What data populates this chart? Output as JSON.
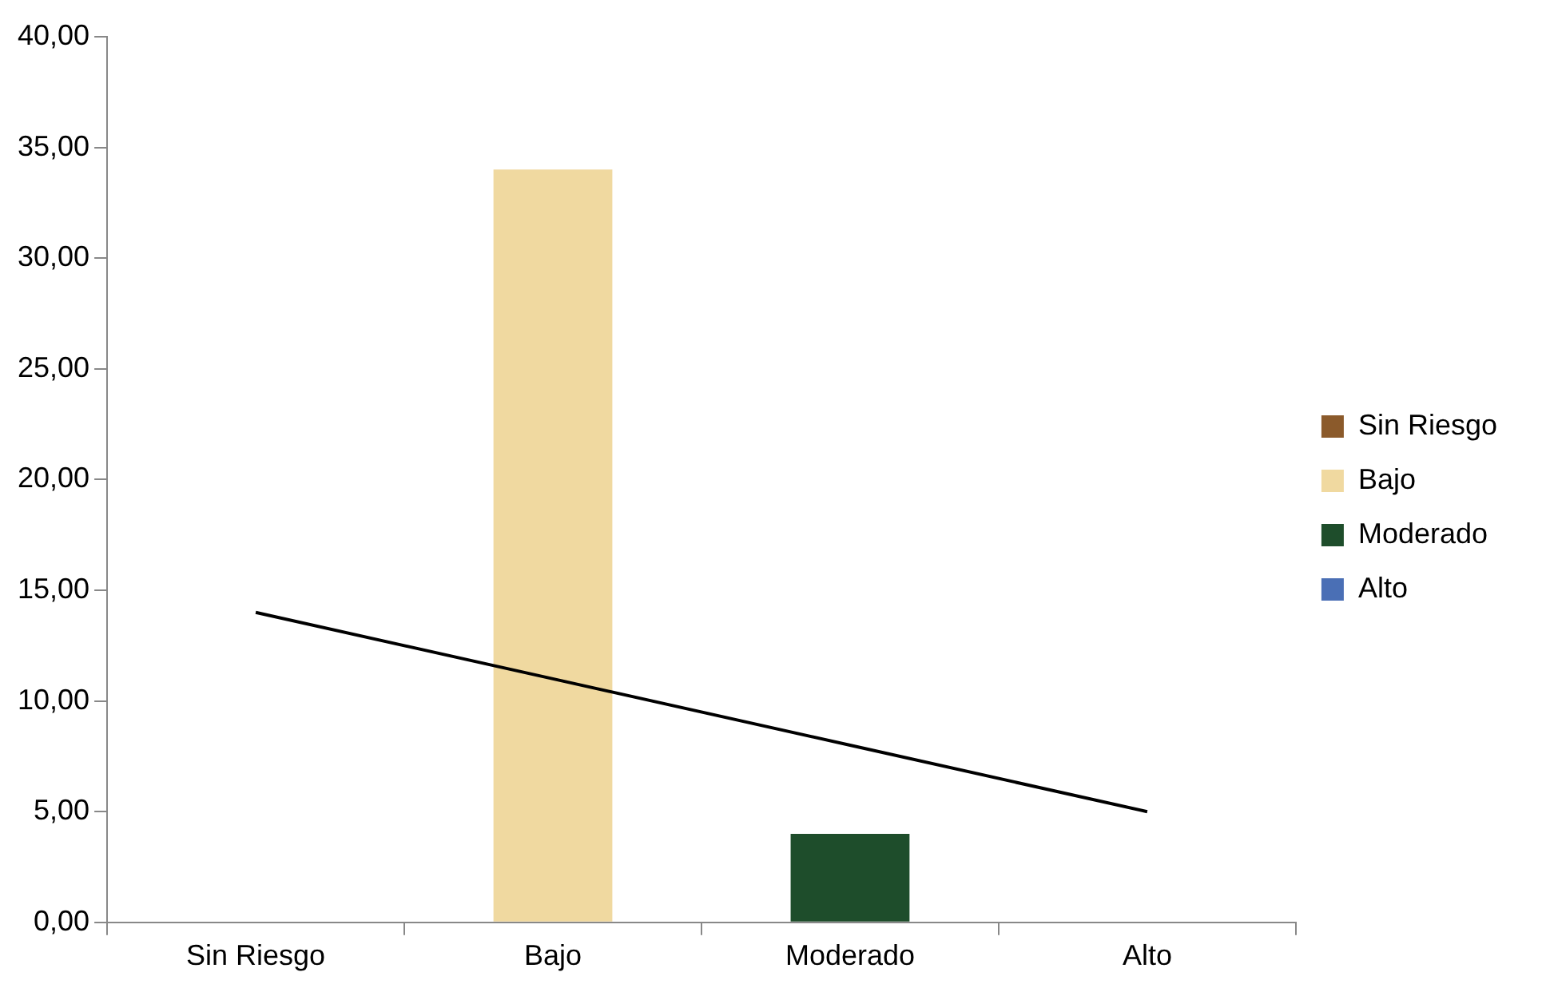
{
  "chart_data": {
    "type": "bar",
    "stacked": true,
    "categories": [
      "Sin Riesgo",
      "Bajo",
      "Moderado",
      "Alto"
    ],
    "series": [
      {
        "name": "Sin Riesgo",
        "color": "#8b5a2b",
        "values": [
          0,
          null,
          null,
          null
        ]
      },
      {
        "name": "Bajo",
        "color": "#f0d9a0",
        "values": [
          null,
          34,
          null,
          null
        ]
      },
      {
        "name": "Moderado",
        "color": "#1e4d2b",
        "values": [
          null,
          null,
          4,
          null
        ]
      },
      {
        "name": "Alto",
        "color": "#4a6fb5",
        "values": [
          null,
          null,
          null,
          0
        ]
      },
      {
        "type": "line",
        "color": "#000000",
        "values": [
          14,
          11,
          8,
          5
        ],
        "marker": "none"
      }
    ],
    "ylim": [
      0,
      40
    ],
    "yticks": [
      {
        "value": 0,
        "label": "0,00"
      },
      {
        "value": 5,
        "label": "5,00"
      },
      {
        "value": 10,
        "label": "10,00"
      },
      {
        "value": 15,
        "label": "15,00"
      },
      {
        "value": 20,
        "label": "20,00"
      },
      {
        "value": 25,
        "label": "25,00"
      },
      {
        "value": 30,
        "label": "30,00"
      },
      {
        "value": 35,
        "label": "35,00"
      },
      {
        "value": 40,
        "label": "40,00"
      }
    ],
    "grid": false,
    "legend": "right"
  }
}
